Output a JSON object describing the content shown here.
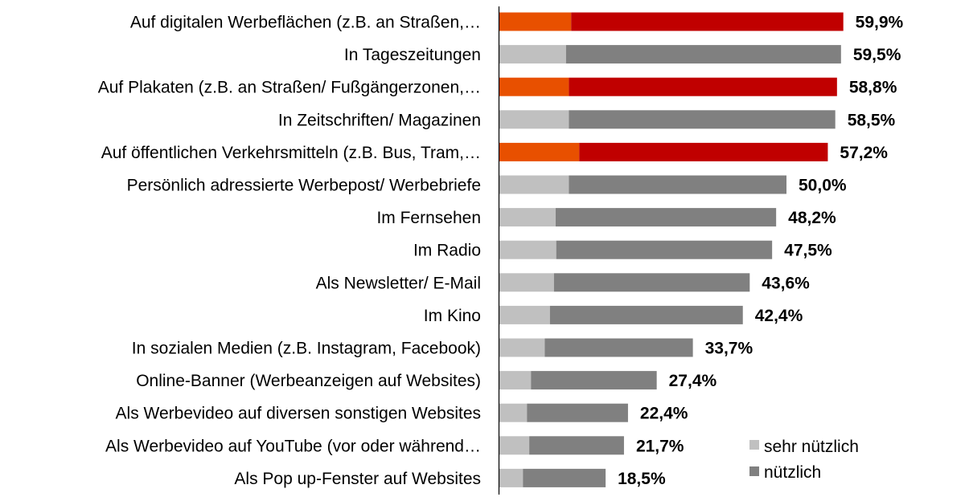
{
  "chart_data": {
    "type": "bar",
    "orientation": "horizontal",
    "stacked": true,
    "categories": [
      "Auf digitalen Werbeflächen (z.B. an Straßen,…",
      "In Tageszeitungen",
      "Auf Plakaten (z.B. an Straßen/ Fußgängerzonen,…",
      "In Zeitschriften/ Magazinen",
      "Auf öffentlichen Verkehrsmitteln (z.B. Bus, Tram,…",
      "Persönlich adressierte Werbepost/ Werbebriefe",
      "Im Fernsehen",
      "Im Radio",
      "Als Newsletter/ E-Mail",
      "Im Kino",
      "In sozialen Medien (z.B. Instagram, Facebook)",
      "Online-Banner (Werbeanzeigen auf Websites)",
      "Als Werbevideo auf diversen sonstigen Websites",
      "Als Werbevideo auf YouTube (vor oder während…",
      "Als Pop up-Fenster auf Websites"
    ],
    "series": [
      {
        "name": "sehr nützlich",
        "values": [
          12.5,
          11.6,
          12.1,
          12.1,
          13.9,
          12.1,
          9.8,
          9.9,
          9.5,
          8.8,
          7.9,
          5.5,
          4.8,
          5.2,
          4.1
        ]
      },
      {
        "name": "nützlich",
        "values": [
          47.4,
          47.9,
          46.7,
          46.4,
          43.3,
          37.9,
          38.4,
          37.6,
          34.1,
          33.6,
          25.8,
          21.9,
          17.6,
          16.5,
          14.4
        ]
      }
    ],
    "totals": [
      59.9,
      59.5,
      58.8,
      58.5,
      57.2,
      50.0,
      48.2,
      47.5,
      43.6,
      42.4,
      33.7,
      27.4,
      22.4,
      21.7,
      18.5
    ],
    "value_labels": [
      "59,9%",
      "59,5%",
      "58,8%",
      "58,5%",
      "57,2%",
      "50,0%",
      "48,2%",
      "47,5%",
      "43,6%",
      "42,4%",
      "33,7%",
      "27,4%",
      "22,4%",
      "21,7%",
      "18,5%"
    ],
    "highlighted_indices": [
      0,
      2,
      4
    ],
    "xlim": [
      0,
      70
    ],
    "grid": false,
    "legend_position": "bottom-right",
    "colors": {
      "sehr_nuetzlich": "#c0c0c0",
      "nuetzlich": "#808080",
      "highlight_sehr_nuetzlich": "#e85000",
      "highlight_nuetzlich": "#c00000",
      "axis": "#000000",
      "text": "#000000"
    }
  }
}
